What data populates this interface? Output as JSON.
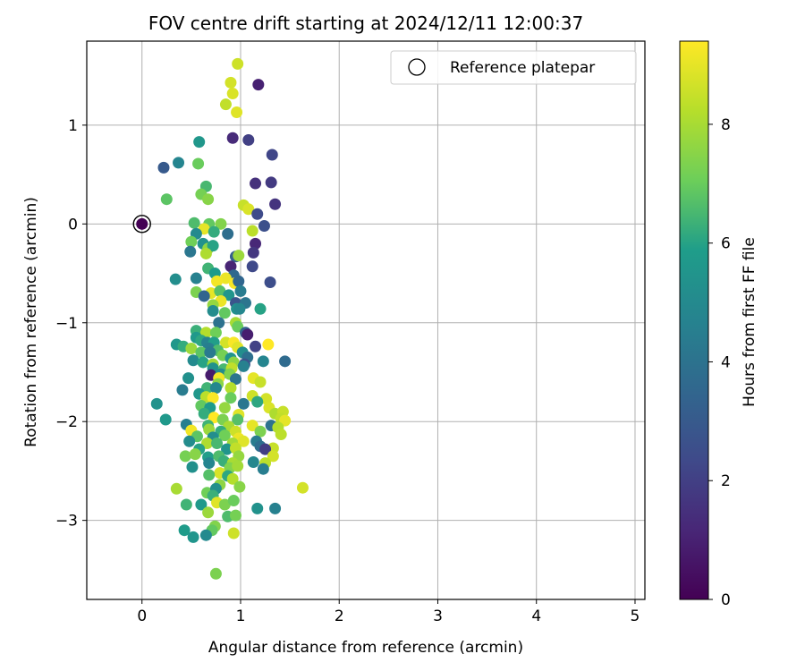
{
  "chart_data": {
    "type": "scatter",
    "title": "FOV centre drift starting at 2024/12/11 12:00:37",
    "xlabel": "Angular distance from reference (arcmin)",
    "ylabel": "Rotation from reference (arcmin)",
    "xlim": [
      -0.56,
      5.1
    ],
    "ylim": [
      -3.8,
      1.85
    ],
    "xticks": [
      "0",
      "1",
      "2",
      "3",
      "4",
      "5"
    ],
    "yticks": [
      "1",
      "0",
      "−1",
      "−2",
      "−3"
    ],
    "grid": true,
    "legend": {
      "placement": "top-right",
      "label": "Reference platepar"
    },
    "reference_point": {
      "x": 0,
      "y": 0
    },
    "colorbar": {
      "label": "Hours from first FF file",
      "range": [
        0,
        9.4
      ],
      "ticks": [
        "0",
        "2",
        "4",
        "6",
        "8"
      ],
      "colormap": "viridis",
      "colors": [
        "#440154",
        "#482777",
        "#3f4a8a",
        "#31678e",
        "#26838f",
        "#1f9d8a",
        "#6cce5a",
        "#b6de2b",
        "#fee825"
      ]
    },
    "points": [
      {
        "x": 0.97,
        "y": 1.62,
        "h": 8.6
      },
      {
        "x": 0.9,
        "y": 1.43,
        "h": 8.7
      },
      {
        "x": 0.92,
        "y": 1.32,
        "h": 8.8
      },
      {
        "x": 0.85,
        "y": 1.21,
        "h": 8.4
      },
      {
        "x": 0.96,
        "y": 1.13,
        "h": 8.9
      },
      {
        "x": 1.18,
        "y": 1.41,
        "h": 1.0
      },
      {
        "x": 0.92,
        "y": 0.87,
        "h": 1.3
      },
      {
        "x": 1.08,
        "y": 0.85,
        "h": 2.0
      },
      {
        "x": 1.32,
        "y": 0.7,
        "h": 2.2
      },
      {
        "x": 0.58,
        "y": 0.83,
        "h": 5.6
      },
      {
        "x": 0.37,
        "y": 0.62,
        "h": 4.8
      },
      {
        "x": 0.22,
        "y": 0.57,
        "h": 3.0
      },
      {
        "x": 0.57,
        "y": 0.61,
        "h": 7.0
      },
      {
        "x": 1.15,
        "y": 0.41,
        "h": 1.5
      },
      {
        "x": 1.31,
        "y": 0.42,
        "h": 1.8
      },
      {
        "x": 0.65,
        "y": 0.38,
        "h": 6.5
      },
      {
        "x": 0.6,
        "y": 0.3,
        "h": 7.2
      },
      {
        "x": 0.25,
        "y": 0.25,
        "h": 6.8
      },
      {
        "x": 0.67,
        "y": 0.25,
        "h": 7.5
      },
      {
        "x": 1.03,
        "y": 0.19,
        "h": 8.5
      },
      {
        "x": 1.08,
        "y": 0.15,
        "h": 8.8
      },
      {
        "x": 1.35,
        "y": 0.2,
        "h": 1.6
      },
      {
        "x": 1.17,
        "y": 0.1,
        "h": 2.4
      },
      {
        "x": 1.24,
        "y": -0.02,
        "h": 2.6
      },
      {
        "x": 0.53,
        "y": 0.01,
        "h": 6.6
      },
      {
        "x": 0.68,
        "y": 0.0,
        "h": 6.9
      },
      {
        "x": 0.8,
        "y": 0.0,
        "h": 7.4
      },
      {
        "x": 0.63,
        "y": -0.05,
        "h": 9.0
      },
      {
        "x": 0.55,
        "y": -0.1,
        "h": 5.0
      },
      {
        "x": 0.73,
        "y": -0.08,
        "h": 6.2
      },
      {
        "x": 0.87,
        "y": -0.1,
        "h": 3.8
      },
      {
        "x": 1.12,
        "y": -0.07,
        "h": 8.3
      },
      {
        "x": 0.5,
        "y": -0.18,
        "h": 7.1
      },
      {
        "x": 0.62,
        "y": -0.2,
        "h": 5.4
      },
      {
        "x": 0.67,
        "y": -0.25,
        "h": 7.6
      },
      {
        "x": 0.72,
        "y": -0.22,
        "h": 6.0
      },
      {
        "x": 1.15,
        "y": -0.2,
        "h": 1.2
      },
      {
        "x": 0.49,
        "y": -0.28,
        "h": 4.2
      },
      {
        "x": 0.65,
        "y": -0.3,
        "h": 8.1
      },
      {
        "x": 1.13,
        "y": -0.29,
        "h": 1.7
      },
      {
        "x": 0.95,
        "y": -0.33,
        "h": 3.2
      },
      {
        "x": 0.98,
        "y": -0.32,
        "h": 7.8
      },
      {
        "x": 0.67,
        "y": -0.45,
        "h": 6.4
      },
      {
        "x": 0.9,
        "y": -0.43,
        "h": 1.1
      },
      {
        "x": 1.12,
        "y": -0.43,
        "h": 2.3
      },
      {
        "x": 0.93,
        "y": -0.52,
        "h": 3.6
      },
      {
        "x": 0.74,
        "y": -0.5,
        "h": 5.8
      },
      {
        "x": 0.85,
        "y": -0.55,
        "h": 9.1
      },
      {
        "x": 0.34,
        "y": -0.56,
        "h": 5.2
      },
      {
        "x": 0.55,
        "y": -0.55,
        "h": 4.6
      },
      {
        "x": 0.76,
        "y": -0.58,
        "h": 9.2
      },
      {
        "x": 0.94,
        "y": -0.6,
        "h": 9.3
      },
      {
        "x": 0.98,
        "y": -0.58,
        "h": 3.5
      },
      {
        "x": 1.3,
        "y": -0.59,
        "h": 2.5
      },
      {
        "x": 0.55,
        "y": -0.69,
        "h": 7.3
      },
      {
        "x": 0.7,
        "y": -0.7,
        "h": 9.0
      },
      {
        "x": 0.79,
        "y": -0.68,
        "h": 6.7
      },
      {
        "x": 0.88,
        "y": -0.72,
        "h": 5.5
      },
      {
        "x": 1.0,
        "y": -0.68,
        "h": 4.4
      },
      {
        "x": 0.63,
        "y": -0.73,
        "h": 3.4
      },
      {
        "x": 0.8,
        "y": -0.78,
        "h": 9.1
      },
      {
        "x": 0.72,
        "y": -0.82,
        "h": 7.7
      },
      {
        "x": 0.95,
        "y": -0.8,
        "h": 2.8
      },
      {
        "x": 1.05,
        "y": -0.8,
        "h": 4.1
      },
      {
        "x": 0.72,
        "y": -0.88,
        "h": 5.1
      },
      {
        "x": 0.84,
        "y": -0.9,
        "h": 6.9
      },
      {
        "x": 0.96,
        "y": -0.86,
        "h": 5.3
      },
      {
        "x": 0.99,
        "y": -0.86,
        "h": 4.9
      },
      {
        "x": 1.2,
        "y": -0.86,
        "h": 6.0
      },
      {
        "x": 0.78,
        "y": -1.0,
        "h": 4.0
      },
      {
        "x": 0.95,
        "y": -1.0,
        "h": 8.0
      },
      {
        "x": 0.97,
        "y": -1.04,
        "h": 7.0
      },
      {
        "x": 0.55,
        "y": -1.08,
        "h": 6.3
      },
      {
        "x": 0.65,
        "y": -1.1,
        "h": 8.2
      },
      {
        "x": 0.75,
        "y": -1.1,
        "h": 7.1
      },
      {
        "x": 1.05,
        "y": -1.1,
        "h": 3.3
      },
      {
        "x": 1.07,
        "y": -1.12,
        "h": 0.9
      },
      {
        "x": 0.55,
        "y": -1.15,
        "h": 5.7
      },
      {
        "x": 0.6,
        "y": -1.18,
        "h": 6.1
      },
      {
        "x": 0.66,
        "y": -1.2,
        "h": 4.7
      },
      {
        "x": 0.73,
        "y": -1.2,
        "h": 5.9
      },
      {
        "x": 0.85,
        "y": -1.2,
        "h": 8.7
      },
      {
        "x": 0.93,
        "y": -1.2,
        "h": 9.3
      },
      {
        "x": 0.35,
        "y": -1.22,
        "h": 5.6
      },
      {
        "x": 0.42,
        "y": -1.24,
        "h": 6.2
      },
      {
        "x": 0.5,
        "y": -1.26,
        "h": 7.8
      },
      {
        "x": 0.68,
        "y": -1.26,
        "h": 4.5
      },
      {
        "x": 0.77,
        "y": -1.28,
        "h": 6.6
      },
      {
        "x": 0.97,
        "y": -1.25,
        "h": 8.9
      },
      {
        "x": 1.15,
        "y": -1.24,
        "h": 2.1
      },
      {
        "x": 1.28,
        "y": -1.22,
        "h": 9.4
      },
      {
        "x": 1.02,
        "y": -1.3,
        "h": 5.2
      },
      {
        "x": 0.6,
        "y": -1.3,
        "h": 6.8
      },
      {
        "x": 0.69,
        "y": -1.3,
        "h": 4.3
      },
      {
        "x": 0.82,
        "y": -1.33,
        "h": 7.2
      },
      {
        "x": 0.9,
        "y": -1.36,
        "h": 5.5
      },
      {
        "x": 1.07,
        "y": -1.35,
        "h": 3.9
      },
      {
        "x": 0.52,
        "y": -1.38,
        "h": 5.0
      },
      {
        "x": 0.62,
        "y": -1.4,
        "h": 6.0
      },
      {
        "x": 0.72,
        "y": -1.42,
        "h": 7.9
      },
      {
        "x": 0.93,
        "y": -1.4,
        "h": 7.6
      },
      {
        "x": 1.04,
        "y": -1.42,
        "h": 2.7
      },
      {
        "x": 1.23,
        "y": -1.39,
        "h": 4.8
      },
      {
        "x": 1.45,
        "y": -1.39,
        "h": 3.7
      },
      {
        "x": 0.72,
        "y": -1.46,
        "h": 5.4
      },
      {
        "x": 0.83,
        "y": -1.47,
        "h": 6.5
      },
      {
        "x": 0.91,
        "y": -1.46,
        "h": 8.4
      },
      {
        "x": 1.03,
        "y": -1.44,
        "h": 4.6
      },
      {
        "x": 0.7,
        "y": -1.53,
        "h": 0.8
      },
      {
        "x": 0.8,
        "y": -1.52,
        "h": 5.1
      },
      {
        "x": 0.89,
        "y": -1.52,
        "h": 7.4
      },
      {
        "x": 0.47,
        "y": -1.56,
        "h": 5.3
      },
      {
        "x": 0.78,
        "y": -1.56,
        "h": 9.2
      },
      {
        "x": 0.95,
        "y": -1.57,
        "h": 4.1
      },
      {
        "x": 1.13,
        "y": -1.56,
        "h": 9.0
      },
      {
        "x": 1.2,
        "y": -1.6,
        "h": 8.5
      },
      {
        "x": 0.77,
        "y": -1.62,
        "h": 7.5
      },
      {
        "x": 0.66,
        "y": -1.66,
        "h": 6.4
      },
      {
        "x": 0.75,
        "y": -1.66,
        "h": 4.9
      },
      {
        "x": 0.9,
        "y": -1.66,
        "h": 8.2
      },
      {
        "x": 0.41,
        "y": -1.68,
        "h": 4.4
      },
      {
        "x": 0.58,
        "y": -1.72,
        "h": 5.6
      },
      {
        "x": 0.65,
        "y": -1.75,
        "h": 8.3
      },
      {
        "x": 0.72,
        "y": -1.76,
        "h": 9.3
      },
      {
        "x": 0.9,
        "y": -1.76,
        "h": 7.0
      },
      {
        "x": 1.12,
        "y": -1.74,
        "h": 8.6
      },
      {
        "x": 1.26,
        "y": -1.77,
        "h": 8.7
      },
      {
        "x": 1.17,
        "y": -1.8,
        "h": 6.1
      },
      {
        "x": 0.15,
        "y": -1.82,
        "h": 5.4
      },
      {
        "x": 0.6,
        "y": -1.84,
        "h": 6.9
      },
      {
        "x": 0.69,
        "y": -1.86,
        "h": 5.8
      },
      {
        "x": 0.84,
        "y": -1.86,
        "h": 7.7
      },
      {
        "x": 1.03,
        "y": -1.82,
        "h": 4.2
      },
      {
        "x": 1.29,
        "y": -1.86,
        "h": 8.8
      },
      {
        "x": 0.63,
        "y": -1.92,
        "h": 6.2
      },
      {
        "x": 0.98,
        "y": -1.93,
        "h": 8.9
      },
      {
        "x": 1.35,
        "y": -1.92,
        "h": 8.1
      },
      {
        "x": 1.43,
        "y": -1.9,
        "h": 8.5
      },
      {
        "x": 0.24,
        "y": -1.98,
        "h": 5.7
      },
      {
        "x": 0.73,
        "y": -1.96,
        "h": 9.4
      },
      {
        "x": 0.82,
        "y": -1.98,
        "h": 7.3
      },
      {
        "x": 0.97,
        "y": -1.98,
        "h": 6.7
      },
      {
        "x": 1.41,
        "y": -1.97,
        "h": 8.4
      },
      {
        "x": 1.45,
        "y": -1.99,
        "h": 9.0
      },
      {
        "x": 0.45,
        "y": -2.03,
        "h": 4.5
      },
      {
        "x": 0.67,
        "y": -2.04,
        "h": 6.4
      },
      {
        "x": 0.88,
        "y": -2.05,
        "h": 8.0
      },
      {
        "x": 1.12,
        "y": -2.04,
        "h": 9.0
      },
      {
        "x": 1.31,
        "y": -2.04,
        "h": 4.0
      },
      {
        "x": 1.38,
        "y": -2.06,
        "h": 8.2
      },
      {
        "x": 0.5,
        "y": -2.09,
        "h": 9.2
      },
      {
        "x": 0.68,
        "y": -2.08,
        "h": 7.8
      },
      {
        "x": 0.8,
        "y": -2.1,
        "h": 6.2
      },
      {
        "x": 0.95,
        "y": -2.1,
        "h": 8.6
      },
      {
        "x": 1.2,
        "y": -2.1,
        "h": 7.3
      },
      {
        "x": 0.56,
        "y": -2.15,
        "h": 6.8
      },
      {
        "x": 0.72,
        "y": -2.16,
        "h": 5.2
      },
      {
        "x": 0.84,
        "y": -2.14,
        "h": 7.1
      },
      {
        "x": 0.98,
        "y": -2.17,
        "h": 9.1
      },
      {
        "x": 1.41,
        "y": -2.13,
        "h": 8.3
      },
      {
        "x": 0.48,
        "y": -2.2,
        "h": 5.1
      },
      {
        "x": 0.66,
        "y": -2.22,
        "h": 8.1
      },
      {
        "x": 0.76,
        "y": -2.22,
        "h": 6.5
      },
      {
        "x": 0.92,
        "y": -2.22,
        "h": 7.9
      },
      {
        "x": 1.03,
        "y": -2.2,
        "h": 8.9
      },
      {
        "x": 1.16,
        "y": -2.2,
        "h": 4.4
      },
      {
        "x": 0.58,
        "y": -2.28,
        "h": 6.0
      },
      {
        "x": 0.86,
        "y": -2.28,
        "h": 5.5
      },
      {
        "x": 0.95,
        "y": -2.27,
        "h": 8.4
      },
      {
        "x": 1.2,
        "y": -2.25,
        "h": 3.8
      },
      {
        "x": 1.33,
        "y": -2.27,
        "h": 8.5
      },
      {
        "x": 1.25,
        "y": -2.28,
        "h": 1.9
      },
      {
        "x": 0.44,
        "y": -2.35,
        "h": 7.2
      },
      {
        "x": 0.54,
        "y": -2.33,
        "h": 7.5
      },
      {
        "x": 0.67,
        "y": -2.36,
        "h": 5.9
      },
      {
        "x": 0.78,
        "y": -2.35,
        "h": 6.6
      },
      {
        "x": 0.98,
        "y": -2.35,
        "h": 7.7
      },
      {
        "x": 1.33,
        "y": -2.35,
        "h": 8.7
      },
      {
        "x": 0.68,
        "y": -2.42,
        "h": 4.8
      },
      {
        "x": 0.83,
        "y": -2.4,
        "h": 6.3
      },
      {
        "x": 0.92,
        "y": -2.42,
        "h": 8.0
      },
      {
        "x": 1.13,
        "y": -2.41,
        "h": 4.9
      },
      {
        "x": 1.25,
        "y": -2.42,
        "h": 8.3
      },
      {
        "x": 0.51,
        "y": -2.46,
        "h": 5.3
      },
      {
        "x": 0.89,
        "y": -2.47,
        "h": 7.4
      },
      {
        "x": 0.97,
        "y": -2.45,
        "h": 7.9
      },
      {
        "x": 1.23,
        "y": -2.48,
        "h": 4.5
      },
      {
        "x": 0.79,
        "y": -2.52,
        "h": 8.8
      },
      {
        "x": 0.68,
        "y": -2.54,
        "h": 6.7
      },
      {
        "x": 0.87,
        "y": -2.55,
        "h": 6.1
      },
      {
        "x": 0.92,
        "y": -2.58,
        "h": 8.2
      },
      {
        "x": 0.79,
        "y": -2.64,
        "h": 7.6
      },
      {
        "x": 0.35,
        "y": -2.68,
        "h": 8.0
      },
      {
        "x": 0.66,
        "y": -2.72,
        "h": 7.1
      },
      {
        "x": 0.75,
        "y": -2.68,
        "h": 5.3
      },
      {
        "x": 0.99,
        "y": -2.66,
        "h": 7.5
      },
      {
        "x": 1.63,
        "y": -2.67,
        "h": 8.7
      },
      {
        "x": 0.72,
        "y": -2.75,
        "h": 6.3
      },
      {
        "x": 0.45,
        "y": -2.84,
        "h": 6.4
      },
      {
        "x": 0.6,
        "y": -2.84,
        "h": 5.7
      },
      {
        "x": 0.76,
        "y": -2.82,
        "h": 8.9
      },
      {
        "x": 0.84,
        "y": -2.84,
        "h": 7.3
      },
      {
        "x": 0.93,
        "y": -2.8,
        "h": 7.0
      },
      {
        "x": 1.17,
        "y": -2.88,
        "h": 5.4
      },
      {
        "x": 1.35,
        "y": -2.88,
        "h": 4.6
      },
      {
        "x": 0.67,
        "y": -2.92,
        "h": 7.8
      },
      {
        "x": 0.87,
        "y": -2.96,
        "h": 6.6
      },
      {
        "x": 0.95,
        "y": -2.95,
        "h": 7.2
      },
      {
        "x": 0.74,
        "y": -3.06,
        "h": 7.4
      },
      {
        "x": 0.43,
        "y": -3.1,
        "h": 5.8
      },
      {
        "x": 0.71,
        "y": -3.1,
        "h": 6.9
      },
      {
        "x": 0.93,
        "y": -3.13,
        "h": 8.6
      },
      {
        "x": 0.52,
        "y": -3.17,
        "h": 5.5
      },
      {
        "x": 0.65,
        "y": -3.15,
        "h": 5.0
      },
      {
        "x": 0.75,
        "y": -3.54,
        "h": 7.3
      },
      {
        "x": 0.0,
        "y": 0.0,
        "h": 0.0
      }
    ]
  }
}
